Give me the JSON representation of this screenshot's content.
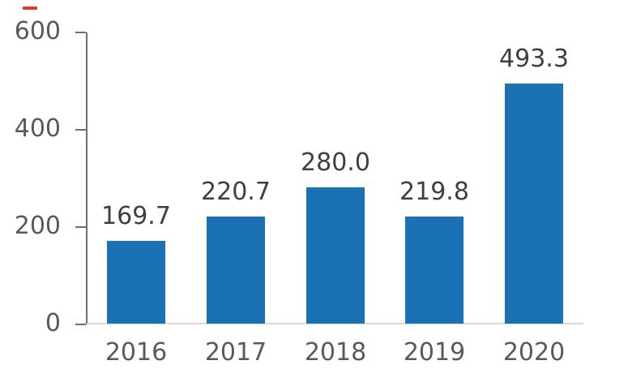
{
  "chart_data": {
    "type": "bar",
    "title": "",
    "categories": [
      "2016",
      "2017",
      "2018",
      "2019",
      "2020"
    ],
    "values": [
      169.7,
      220.7,
      280.0,
      219.8,
      493.3
    ],
    "value_labels": [
      "169.7",
      "220.7",
      "280.0",
      "219.8",
      "493.3"
    ],
    "xlabel": "",
    "ylabel": "",
    "ylim": [
      0,
      600
    ],
    "y_tick_labels": [
      "0",
      "200",
      "400",
      "600"
    ],
    "y_tick_values": [
      0,
      200,
      400,
      600
    ],
    "grid": false,
    "legend": false,
    "bar_color": "#1a72b5",
    "value_label_color": "#3f3f3f",
    "axis_text_color": "#595959",
    "axis_line_color": "#6e6e6e",
    "baseline_color": "#d9d9d9"
  },
  "decoration": {
    "red_dash_color": "#e0392b"
  }
}
